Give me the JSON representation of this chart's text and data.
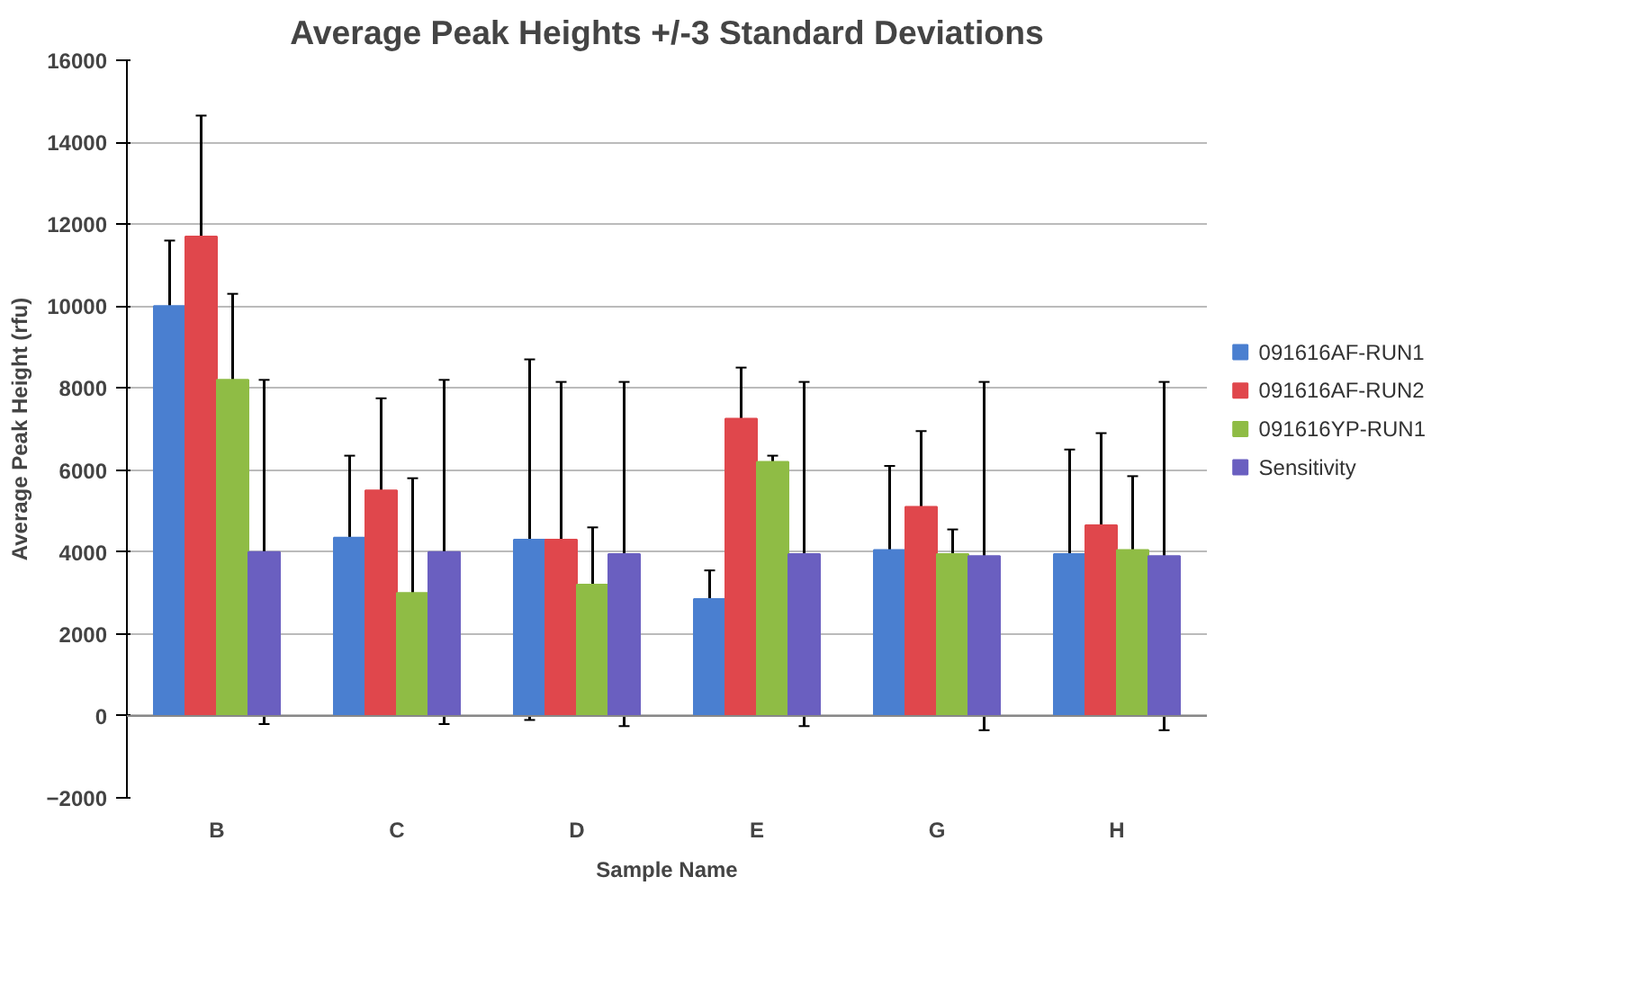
{
  "chart_data": {
    "type": "bar",
    "title": "Average Peak Heights +/-3 Standard Deviations",
    "xlabel": "Sample Name",
    "ylabel": "Average Peak Height (rfu)",
    "categories": [
      "B",
      "C",
      "D",
      "E",
      "G",
      "H"
    ],
    "series": [
      {
        "name": "091616AF-RUN1",
        "color": "#4a7fd0",
        "values": [
          10000,
          4350,
          4300,
          2850,
          4050,
          3950
        ],
        "errors": [
          1600,
          2000,
          4400,
          700,
          2050,
          2550
        ]
      },
      {
        "name": "091616AF-RUN2",
        "color": "#e0474c",
        "values": [
          11700,
          5500,
          4300,
          7250,
          5100,
          4650
        ],
        "errors": [
          2950,
          2250,
          3850,
          1250,
          1850,
          2250
        ]
      },
      {
        "name": "091616YP-RUN1",
        "color": "#8fbc45",
        "values": [
          8200,
          3000,
          3200,
          6200,
          3950,
          4050
        ],
        "errors": [
          2100,
          2800,
          1400,
          150,
          600,
          1800
        ]
      },
      {
        "name": "Sensitivity",
        "color": "#6a5fc0",
        "values": [
          4000,
          4000,
          3950,
          3950,
          3900,
          3900
        ],
        "errors": [
          4200,
          4200,
          4200,
          4200,
          4250,
          4250
        ]
      }
    ],
    "ylim": [
      -2000,
      16000
    ],
    "yticks": [
      -2000,
      0,
      2000,
      4000,
      6000,
      8000,
      10000,
      12000,
      14000,
      16000
    ],
    "grid": "y",
    "legend": "right"
  }
}
